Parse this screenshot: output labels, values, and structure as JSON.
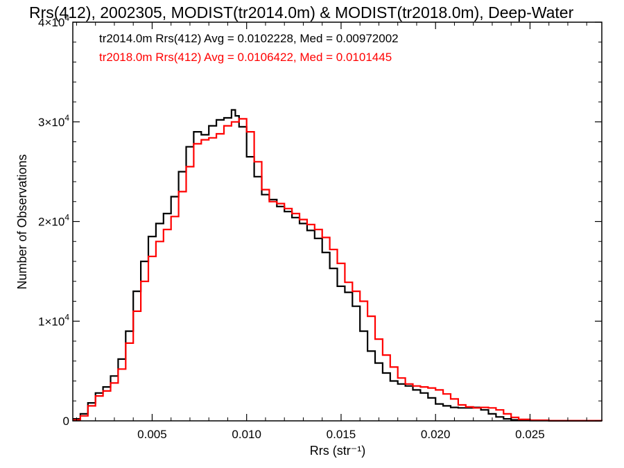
{
  "chart_data": {
    "type": "line",
    "title": "Rrs(412), 2002305, MODIST(tr2014.0m) & MODIST(tr2018.0m), Deep-Water",
    "xlabel": "Rrs (str⁻¹)",
    "ylabel": "Number of Observations",
    "xlim": [
      0.0008,
      0.0288
    ],
    "ylim": [
      0,
      40000
    ],
    "x_ticks": [
      {
        "value": 0.005,
        "label": "0.005"
      },
      {
        "value": 0.01,
        "label": "0.010"
      },
      {
        "value": 0.015,
        "label": "0.015"
      },
      {
        "value": 0.02,
        "label": "0.020"
      },
      {
        "value": 0.025,
        "label": "0.025"
      }
    ],
    "y_ticks": [
      {
        "value": 0,
        "mantissa": "0",
        "exponent": ""
      },
      {
        "value": 10000,
        "mantissa": "1×10",
        "exponent": "4"
      },
      {
        "value": 20000,
        "mantissa": "2×10",
        "exponent": "4"
      },
      {
        "value": 30000,
        "mantissa": "3×10",
        "exponent": "4"
      },
      {
        "value": 40000,
        "mantissa": "4×10",
        "exponent": "4"
      }
    ],
    "grid": false,
    "series": [
      {
        "name": "tr2014.0m",
        "stat_text": "tr2014.0m Rrs(412) Avg = 0.0102228, Med = 0.00972002",
        "color": "#000000",
        "x": [
          0.0008,
          0.0012,
          0.0016,
          0.002,
          0.0024,
          0.0028,
          0.0032,
          0.0036,
          0.004,
          0.0044,
          0.0048,
          0.0052,
          0.0056,
          0.006,
          0.0064,
          0.0068,
          0.0072,
          0.0076,
          0.008,
          0.0084,
          0.0088,
          0.0092,
          0.0094,
          0.0096,
          0.01,
          0.0104,
          0.0108,
          0.0112,
          0.0116,
          0.012,
          0.0124,
          0.0128,
          0.0132,
          0.0136,
          0.014,
          0.0144,
          0.0148,
          0.0152,
          0.0156,
          0.016,
          0.0164,
          0.0168,
          0.0172,
          0.0176,
          0.018,
          0.0184,
          0.0188,
          0.0192,
          0.0196,
          0.02,
          0.0204,
          0.0208,
          0.0212,
          0.0216,
          0.022,
          0.0224,
          0.0228,
          0.0232,
          0.0236,
          0.024,
          0.0244,
          0.025,
          0.026,
          0.0288
        ],
        "y": [
          200,
          700,
          1800,
          2800,
          3400,
          4500,
          6200,
          9000,
          13000,
          16000,
          18500,
          19800,
          20800,
          22500,
          25000,
          27500,
          29000,
          28700,
          29600,
          30200,
          30400,
          31200,
          30600,
          29500,
          26500,
          24500,
          22700,
          22200,
          21500,
          21000,
          20400,
          19800,
          19100,
          18300,
          16900,
          15300,
          13500,
          12900,
          11500,
          9000,
          7000,
          5800,
          4800,
          4000,
          3700,
          3500,
          3100,
          2800,
          2300,
          1700,
          1500,
          1350,
          1300,
          1300,
          1350,
          1100,
          700,
          400,
          200,
          100,
          60,
          20,
          0,
          0
        ]
      },
      {
        "name": "tr2018.0m",
        "stat_text": "tr2018.0m Rrs(412) Avg = 0.0106422, Med = 0.0101445",
        "color": "#ff0000",
        "x": [
          0.0008,
          0.0012,
          0.0016,
          0.002,
          0.0024,
          0.0028,
          0.0032,
          0.0036,
          0.004,
          0.0044,
          0.0048,
          0.0052,
          0.0056,
          0.006,
          0.0064,
          0.0068,
          0.0072,
          0.0076,
          0.008,
          0.0084,
          0.0088,
          0.0092,
          0.0096,
          0.01,
          0.0104,
          0.0108,
          0.0112,
          0.0116,
          0.012,
          0.0124,
          0.0128,
          0.0132,
          0.0136,
          0.014,
          0.0144,
          0.0148,
          0.0152,
          0.0156,
          0.016,
          0.0164,
          0.0168,
          0.0172,
          0.0176,
          0.018,
          0.0184,
          0.0188,
          0.0192,
          0.0196,
          0.02,
          0.0204,
          0.0208,
          0.0212,
          0.0216,
          0.022,
          0.0224,
          0.0228,
          0.0232,
          0.0236,
          0.024,
          0.0244,
          0.025,
          0.026,
          0.0288
        ],
        "y": [
          100,
          500,
          1500,
          2500,
          3000,
          3800,
          5200,
          7800,
          11000,
          14000,
          16500,
          18000,
          19200,
          20500,
          23000,
          25500,
          27800,
          28200,
          28400,
          28800,
          29600,
          30000,
          30300,
          29000,
          26000,
          23200,
          22000,
          21800,
          21300,
          20800,
          20200,
          19700,
          19200,
          18400,
          17200,
          15800,
          13900,
          13000,
          12000,
          10500,
          8200,
          6600,
          5400,
          4300,
          3700,
          3500,
          3400,
          3300,
          3100,
          2700,
          2200,
          1600,
          1400,
          1300,
          1350,
          1300,
          1100,
          700,
          350,
          150,
          60,
          20,
          0
        ]
      }
    ]
  }
}
